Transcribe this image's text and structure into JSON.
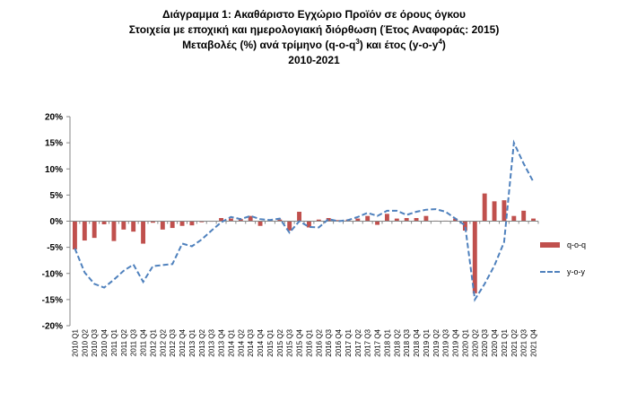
{
  "title": {
    "line1": "Διάγραμμα 1: Ακαθάριστο Εγχώριο Προϊόν σε όρους όγκου",
    "line2": "Στοιχεία με εποχική και ημερολογιακή διόρθωση (Έτος Αναφοράς: 2015)",
    "line3_pre": "Μεταβολές (%) ανά τρίμηνο (q-o-q",
    "line3_sup1": "3",
    "line3_mid": ") και έτος (y-o-y",
    "line3_sup2": "4",
    "line3_post": ")",
    "line4": "2010-2021"
  },
  "chart_data": {
    "type": "bar",
    "categories": [
      "2010 Q1",
      "2010 Q2",
      "2010 Q3",
      "2010 Q4",
      "2011 Q1",
      "2011 Q2",
      "2011 Q3",
      "2011 Q4",
      "2012 Q1",
      "2012 Q2",
      "2012 Q3",
      "2012 Q4",
      "2013 Q1",
      "2013 Q2",
      "2013 Q3",
      "2013 Q4",
      "2014 Q1",
      "2014 Q2",
      "2014 Q3",
      "2014 Q4",
      "2015 Q1",
      "2015 Q2",
      "2015 Q3",
      "2015 Q4",
      "2016 Q1",
      "2016 Q2",
      "2016 Q3",
      "2016 Q4",
      "2017 Q1",
      "2017 Q2",
      "2017 Q3",
      "2017 Q4",
      "2018 Q1",
      "2018 Q2",
      "2018 Q3",
      "2018 Q4",
      "2019 Q1",
      "2019 Q2",
      "2019 Q3",
      "2019 Q4",
      "2020 Q1",
      "2020 Q2",
      "2020 Q3",
      "2020 Q4",
      "2021 Q1",
      "2021 Q2",
      "2021 Q3",
      "2021 Q4"
    ],
    "series": [
      {
        "name": "q-o-q",
        "kind": "bar",
        "color": "#c0504d",
        "values": [
          -5.4,
          -3.7,
          -3.2,
          -0.6,
          -3.8,
          -1.6,
          -2.0,
          -4.3,
          -0.3,
          -1.6,
          -1.3,
          -0.9,
          -0.8,
          -0.2,
          -0.1,
          0.6,
          0.5,
          0.4,
          1.0,
          -0.9,
          0.2,
          0.3,
          -1.8,
          1.8,
          -1.2,
          0.3,
          0.6,
          0.2,
          0.3,
          0.5,
          1.0,
          -0.7,
          1.4,
          0.5,
          0.6,
          0.6,
          1.0,
          0.1,
          0.1,
          0.5,
          -1.8,
          -13.8,
          5.3,
          3.8,
          4.0,
          1.0,
          2.0,
          0.5
        ]
      },
      {
        "name": "y-o-y",
        "kind": "line",
        "color": "#4f81bd",
        "values": [
          -5.2,
          -9.8,
          -12.0,
          -12.7,
          -11.2,
          -9.5,
          -8.3,
          -11.6,
          -8.6,
          -8.4,
          -8.2,
          -4.3,
          -4.8,
          -3.5,
          -1.8,
          -0.2,
          0.8,
          0.4,
          1.0,
          0.4,
          0.2,
          0.5,
          -2.2,
          0.0,
          -1.1,
          -1.2,
          0.4,
          0.0,
          0.2,
          0.8,
          1.6,
          1.0,
          2.0,
          2.0,
          1.2,
          1.8,
          2.2,
          2.3,
          1.8,
          0.5,
          -0.8,
          -15.0,
          -12.0,
          -8.5,
          -4.0,
          15.0,
          11.0,
          7.5
        ]
      }
    ],
    "yticks": [
      "20%",
      "15%",
      "10%",
      "5%",
      "0%",
      "-5%",
      "-10%",
      "-15%",
      "-20%"
    ],
    "ylim": [
      -20,
      20
    ],
    "legend_position": "right",
    "grid": false
  },
  "colors": {
    "bar": "#c0504d",
    "line": "#4f81bd"
  }
}
